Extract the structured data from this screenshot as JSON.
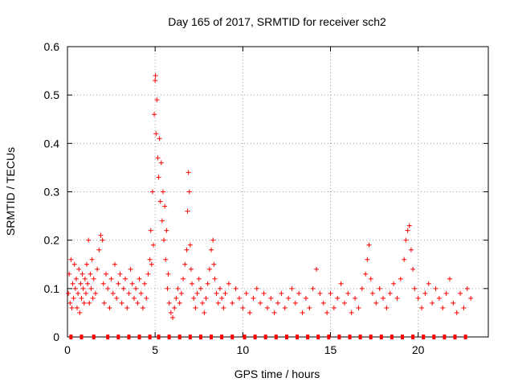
{
  "chart_data": {
    "type": "scatter",
    "title": "Day 165 of 2017, SRMTID for receiver sch2",
    "xlabel": "GPS time / hours",
    "ylabel": "SRMTID / TECUs",
    "xlim": [
      0,
      24
    ],
    "ylim": [
      0,
      0.6
    ],
    "x_ticks": [
      "0",
      "5",
      "10",
      "15",
      "20"
    ],
    "y_ticks": [
      "0",
      "0.1",
      "0.2",
      "0.3",
      "0.4",
      "0.5",
      "0.6"
    ],
    "grid": true,
    "marker": "+",
    "color": "#ff0000",
    "series": [
      {
        "name": "SRMTID",
        "points": [
          [
            0.05,
            0.09
          ],
          [
            0.1,
            0.13
          ],
          [
            0.15,
            0.07
          ],
          [
            0.2,
            0.16
          ],
          [
            0.25,
            0.06
          ],
          [
            0.3,
            0.11
          ],
          [
            0.35,
            0.08
          ],
          [
            0.4,
            0.15
          ],
          [
            0.45,
            0.1
          ],
          [
            0.5,
            0.12
          ],
          [
            0.55,
            0.06
          ],
          [
            0.6,
            0.09
          ],
          [
            0.65,
            0.14
          ],
          [
            0.7,
            0.05
          ],
          [
            0.75,
            0.11
          ],
          [
            0.8,
            0.08
          ],
          [
            0.85,
            0.13
          ],
          [
            0.9,
            0.1
          ],
          [
            0.95,
            0.07
          ],
          [
            1.0,
            0.12
          ],
          [
            1.05,
            0.09
          ],
          [
            1.1,
            0.15
          ],
          [
            1.15,
            0.11
          ],
          [
            1.2,
            0.2
          ],
          [
            1.25,
            0.07
          ],
          [
            1.3,
            0.13
          ],
          [
            1.35,
            0.1
          ],
          [
            1.4,
            0.16
          ],
          [
            1.45,
            0.08
          ],
          [
            1.5,
            0.12
          ],
          [
            1.6,
            0.09
          ],
          [
            1.7,
            0.14
          ],
          [
            1.8,
            0.18
          ],
          [
            1.9,
            0.21
          ],
          [
            2.0,
            0.2
          ],
          [
            2.05,
            0.11
          ],
          [
            2.1,
            0.07
          ],
          [
            2.2,
            0.13
          ],
          [
            2.3,
            0.1
          ],
          [
            2.4,
            0.06
          ],
          [
            2.5,
            0.12
          ],
          [
            2.6,
            0.09
          ],
          [
            2.7,
            0.15
          ],
          [
            2.8,
            0.08
          ],
          [
            2.9,
            0.11
          ],
          [
            3.0,
            0.13
          ],
          [
            3.1,
            0.07
          ],
          [
            3.2,
            0.1
          ],
          [
            3.3,
            0.12
          ],
          [
            3.4,
            0.06
          ],
          [
            3.5,
            0.09
          ],
          [
            3.6,
            0.14
          ],
          [
            3.7,
            0.11
          ],
          [
            3.8,
            0.08
          ],
          [
            3.9,
            0.1
          ],
          [
            4.0,
            0.07
          ],
          [
            4.1,
            0.12
          ],
          [
            4.2,
            0.09
          ],
          [
            4.3,
            0.06
          ],
          [
            4.4,
            0.11
          ],
          [
            4.5,
            0.08
          ],
          [
            4.6,
            0.13
          ],
          [
            4.7,
            0.16
          ],
          [
            4.75,
            0.22
          ],
          [
            4.8,
            0.15
          ],
          [
            4.85,
            0.3
          ],
          [
            4.9,
            0.19
          ],
          [
            4.95,
            0.46
          ],
          [
            5.0,
            0.53
          ],
          [
            5.02,
            0.54
          ],
          [
            5.05,
            0.42
          ],
          [
            5.1,
            0.49
          ],
          [
            5.15,
            0.37
          ],
          [
            5.2,
            0.33
          ],
          [
            5.25,
            0.41
          ],
          [
            5.3,
            0.28
          ],
          [
            5.35,
            0.36
          ],
          [
            5.4,
            0.24
          ],
          [
            5.45,
            0.3
          ],
          [
            5.5,
            0.2
          ],
          [
            5.55,
            0.27
          ],
          [
            5.6,
            0.16
          ],
          [
            5.65,
            0.22
          ],
          [
            5.7,
            0.1
          ],
          [
            5.75,
            0.13
          ],
          [
            5.8,
            0.07
          ],
          [
            5.9,
            0.05
          ],
          [
            6.0,
            0.04
          ],
          [
            6.1,
            0.06
          ],
          [
            6.2,
            0.08
          ],
          [
            6.3,
            0.1
          ],
          [
            6.4,
            0.07
          ],
          [
            6.5,
            0.09
          ],
          [
            6.6,
            0.12
          ],
          [
            6.7,
            0.15
          ],
          [
            6.8,
            0.18
          ],
          [
            6.85,
            0.26
          ],
          [
            6.9,
            0.34
          ],
          [
            6.95,
            0.3
          ],
          [
            7.0,
            0.19
          ],
          [
            7.05,
            0.14
          ],
          [
            7.1,
            0.11
          ],
          [
            7.2,
            0.08
          ],
          [
            7.3,
            0.06
          ],
          [
            7.4,
            0.09
          ],
          [
            7.5,
            0.12
          ],
          [
            7.6,
            0.1
          ],
          [
            7.7,
            0.07
          ],
          [
            7.8,
            0.05
          ],
          [
            7.9,
            0.08
          ],
          [
            8.0,
            0.11
          ],
          [
            8.1,
            0.14
          ],
          [
            8.2,
            0.18
          ],
          [
            8.3,
            0.2
          ],
          [
            8.35,
            0.15
          ],
          [
            8.4,
            0.12
          ],
          [
            8.5,
            0.09
          ],
          [
            8.6,
            0.07
          ],
          [
            8.7,
            0.1
          ],
          [
            8.8,
            0.08
          ],
          [
            8.9,
            0.06
          ],
          [
            9.0,
            0.09
          ],
          [
            9.2,
            0.11
          ],
          [
            9.4,
            0.07
          ],
          [
            9.6,
            0.1
          ],
          [
            9.8,
            0.08
          ],
          [
            10.0,
            0.06
          ],
          [
            10.2,
            0.09
          ],
          [
            10.4,
            0.05
          ],
          [
            10.6,
            0.08
          ],
          [
            10.8,
            0.1
          ],
          [
            11.0,
            0.07
          ],
          [
            11.2,
            0.09
          ],
          [
            11.4,
            0.06
          ],
          [
            11.6,
            0.08
          ],
          [
            11.8,
            0.05
          ],
          [
            12.0,
            0.07
          ],
          [
            12.2,
            0.09
          ],
          [
            12.4,
            0.06
          ],
          [
            12.6,
            0.08
          ],
          [
            12.8,
            0.1
          ],
          [
            13.0,
            0.07
          ],
          [
            13.2,
            0.09
          ],
          [
            13.4,
            0.05
          ],
          [
            13.6,
            0.08
          ],
          [
            13.8,
            0.06
          ],
          [
            14.0,
            0.1
          ],
          [
            14.2,
            0.14
          ],
          [
            14.4,
            0.09
          ],
          [
            14.6,
            0.07
          ],
          [
            14.8,
            0.05
          ],
          [
            15.0,
            0.09
          ],
          [
            15.2,
            0.06
          ],
          [
            15.4,
            0.08
          ],
          [
            15.6,
            0.11
          ],
          [
            15.8,
            0.07
          ],
          [
            16.0,
            0.09
          ],
          [
            16.2,
            0.05
          ],
          [
            16.4,
            0.08
          ],
          [
            16.6,
            0.06
          ],
          [
            16.8,
            0.1
          ],
          [
            17.0,
            0.13
          ],
          [
            17.1,
            0.16
          ],
          [
            17.2,
            0.19
          ],
          [
            17.3,
            0.12
          ],
          [
            17.4,
            0.09
          ],
          [
            17.6,
            0.07
          ],
          [
            17.8,
            0.1
          ],
          [
            18.0,
            0.08
          ],
          [
            18.2,
            0.06
          ],
          [
            18.4,
            0.09
          ],
          [
            18.6,
            0.11
          ],
          [
            18.8,
            0.08
          ],
          [
            19.0,
            0.12
          ],
          [
            19.2,
            0.16
          ],
          [
            19.3,
            0.2
          ],
          [
            19.4,
            0.22
          ],
          [
            19.5,
            0.23
          ],
          [
            19.6,
            0.18
          ],
          [
            19.7,
            0.14
          ],
          [
            19.8,
            0.1
          ],
          [
            20.0,
            0.08
          ],
          [
            20.2,
            0.06
          ],
          [
            20.4,
            0.09
          ],
          [
            20.6,
            0.11
          ],
          [
            20.8,
            0.07
          ],
          [
            21.0,
            0.1
          ],
          [
            21.2,
            0.08
          ],
          [
            21.4,
            0.06
          ],
          [
            21.6,
            0.09
          ],
          [
            21.8,
            0.12
          ],
          [
            22.0,
            0.07
          ],
          [
            22.2,
            0.05
          ],
          [
            22.4,
            0.09
          ],
          [
            22.6,
            0.06
          ],
          [
            22.8,
            0.1
          ],
          [
            23.0,
            0.08
          ]
        ]
      }
    ],
    "gap_markers": {
      "y": 0,
      "x": [
        0.2,
        0.8,
        1.5,
        2.3,
        2.9,
        3.5,
        4.1,
        4.7,
        5.2,
        5.8,
        6.4,
        7.0,
        7.6,
        8.2,
        8.8,
        9.4,
        10.1,
        10.7,
        11.3,
        11.9,
        12.5,
        13.1,
        13.7,
        14.3,
        14.9,
        15.5,
        16.1,
        16.7,
        17.3,
        17.9,
        18.5,
        19.1,
        19.7,
        20.3,
        20.9,
        21.5,
        22.1,
        22.7
      ]
    }
  }
}
